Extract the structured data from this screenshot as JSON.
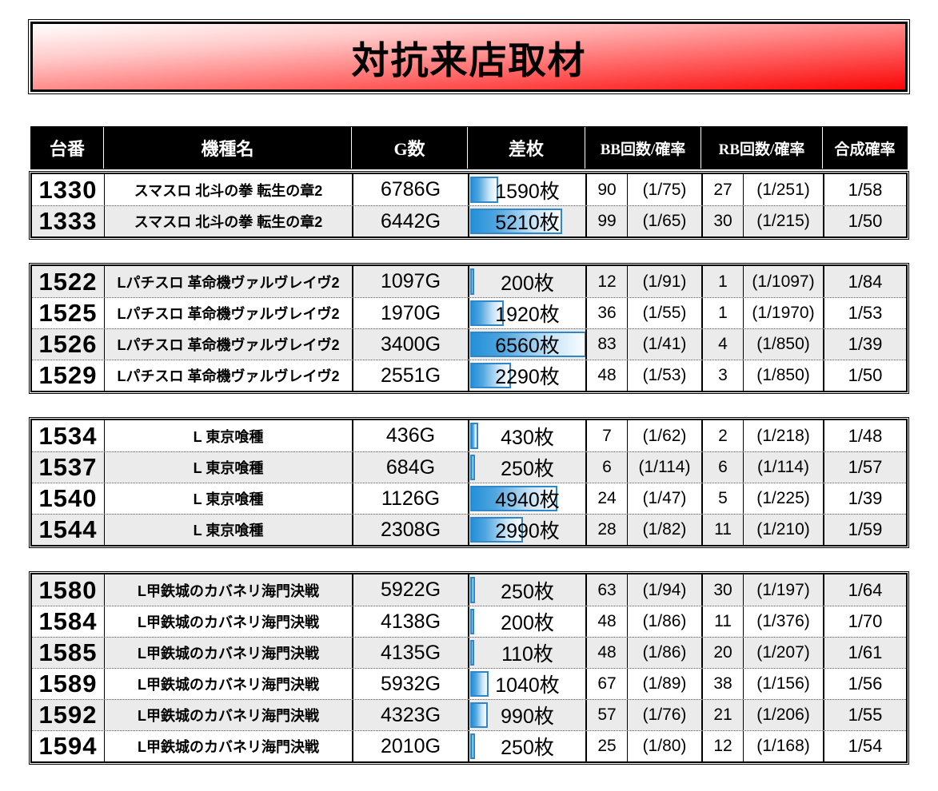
{
  "title": {
    "text": "対抗来店取材"
  },
  "colors": {
    "banner_red": "#ff0000",
    "header_bg": "#000000",
    "header_text": "#ffffff",
    "bar_fill": "#2490d9",
    "bar_border": "#2f87ca",
    "row_shade": "#ebebeb"
  },
  "table": {
    "bar_max": 6560,
    "headers": {
      "machine_no": "台番",
      "model": "機種名",
      "games": "G数",
      "diff": "差枚",
      "bb": "BB回数/確率",
      "rb": "RB回数/確率",
      "combined": "合成確率"
    },
    "groups": [
      {
        "rows": [
          {
            "no": "1330",
            "model": "スマスロ 北斗の拳 転生の章2",
            "games": "6786G",
            "diff_label": "1590枚",
            "diff_value": 1590,
            "bb_count": "90",
            "bb_rate": "(1/75)",
            "rb_count": "27",
            "rb_rate": "(1/251)",
            "combined": "1/58",
            "shade": false
          },
          {
            "no": "1333",
            "model": "スマスロ 北斗の拳 転生の章2",
            "games": "6442G",
            "diff_label": "5210枚",
            "diff_value": 5210,
            "bb_count": "99",
            "bb_rate": "(1/65)",
            "rb_count": "30",
            "rb_rate": "(1/215)",
            "combined": "1/50",
            "shade": true
          }
        ]
      },
      {
        "rows": [
          {
            "no": "1522",
            "model": "Lパチスロ 革命機ヴァルヴレイヴ2",
            "games": "1097G",
            "diff_label": "200枚",
            "diff_value": 200,
            "bb_count": "12",
            "bb_rate": "(1/91)",
            "rb_count": "1",
            "rb_rate": "(1/1097)",
            "combined": "1/84",
            "shade": true
          },
          {
            "no": "1525",
            "model": "Lパチスロ 革命機ヴァルヴレイヴ2",
            "games": "1970G",
            "diff_label": "1920枚",
            "diff_value": 1920,
            "bb_count": "36",
            "bb_rate": "(1/55)",
            "rb_count": "1",
            "rb_rate": "(1/1970)",
            "combined": "1/53",
            "shade": false
          },
          {
            "no": "1526",
            "model": "Lパチスロ 革命機ヴァルヴレイヴ2",
            "games": "3400G",
            "diff_label": "6560枚",
            "diff_value": 6560,
            "bb_count": "83",
            "bb_rate": "(1/41)",
            "rb_count": "4",
            "rb_rate": "(1/850)",
            "combined": "1/39",
            "shade": true
          },
          {
            "no": "1529",
            "model": "Lパチスロ 革命機ヴァルヴレイヴ2",
            "games": "2551G",
            "diff_label": "2290枚",
            "diff_value": 2290,
            "bb_count": "48",
            "bb_rate": "(1/53)",
            "rb_count": "3",
            "rb_rate": "(1/850)",
            "combined": "1/50",
            "shade": false
          }
        ]
      },
      {
        "rows": [
          {
            "no": "1534",
            "model": "L 東京喰種",
            "games": "436G",
            "diff_label": "430枚",
            "diff_value": 430,
            "bb_count": "7",
            "bb_rate": "(1/62)",
            "rb_count": "2",
            "rb_rate": "(1/218)",
            "combined": "1/48",
            "shade": false
          },
          {
            "no": "1537",
            "model": "L 東京喰種",
            "games": "684G",
            "diff_label": "250枚",
            "diff_value": 250,
            "bb_count": "6",
            "bb_rate": "(1/114)",
            "rb_count": "6",
            "rb_rate": "(1/114)",
            "combined": "1/57",
            "shade": true
          },
          {
            "no": "1540",
            "model": "L 東京喰種",
            "games": "1126G",
            "diff_label": "4940枚",
            "diff_value": 4940,
            "bb_count": "24",
            "bb_rate": "(1/47)",
            "rb_count": "5",
            "rb_rate": "(1/225)",
            "combined": "1/39",
            "shade": false
          },
          {
            "no": "1544",
            "model": "L 東京喰種",
            "games": "2308G",
            "diff_label": "2990枚",
            "diff_value": 2990,
            "bb_count": "28",
            "bb_rate": "(1/82)",
            "rb_count": "11",
            "rb_rate": "(1/210)",
            "combined": "1/59",
            "shade": true
          }
        ]
      },
      {
        "rows": [
          {
            "no": "1580",
            "model": "L甲鉄城のカバネリ海門決戦",
            "games": "5922G",
            "diff_label": "250枚",
            "diff_value": 250,
            "bb_count": "63",
            "bb_rate": "(1/94)",
            "rb_count": "30",
            "rb_rate": "(1/197)",
            "combined": "1/64",
            "shade": true
          },
          {
            "no": "1584",
            "model": "L甲鉄城のカバネリ海門決戦",
            "games": "4138G",
            "diff_label": "200枚",
            "diff_value": 200,
            "bb_count": "48",
            "bb_rate": "(1/86)",
            "rb_count": "11",
            "rb_rate": "(1/376)",
            "combined": "1/70",
            "shade": false
          },
          {
            "no": "1585",
            "model": "L甲鉄城のカバネリ海門決戦",
            "games": "4135G",
            "diff_label": "110枚",
            "diff_value": 110,
            "bb_count": "48",
            "bb_rate": "(1/86)",
            "rb_count": "20",
            "rb_rate": "(1/207)",
            "combined": "1/61",
            "shade": true
          },
          {
            "no": "1589",
            "model": "L甲鉄城のカバネリ海門決戦",
            "games": "5932G",
            "diff_label": "1040枚",
            "diff_value": 1040,
            "bb_count": "67",
            "bb_rate": "(1/89)",
            "rb_count": "38",
            "rb_rate": "(1/156)",
            "combined": "1/56",
            "shade": false
          },
          {
            "no": "1592",
            "model": "L甲鉄城のカバネリ海門決戦",
            "games": "4323G",
            "diff_label": "990枚",
            "diff_value": 990,
            "bb_count": "57",
            "bb_rate": "(1/76)",
            "rb_count": "21",
            "rb_rate": "(1/206)",
            "combined": "1/55",
            "shade": true
          },
          {
            "no": "1594",
            "model": "L甲鉄城のカバネリ海門決戦",
            "games": "2010G",
            "diff_label": "250枚",
            "diff_value": 250,
            "bb_count": "25",
            "bb_rate": "(1/80)",
            "rb_count": "12",
            "rb_rate": "(1/168)",
            "combined": "1/54",
            "shade": false
          }
        ]
      }
    ]
  }
}
